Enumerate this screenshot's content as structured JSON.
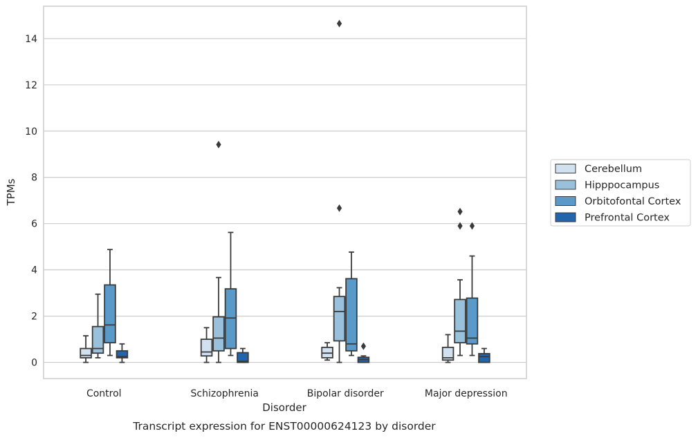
{
  "chart_data": {
    "type": "box",
    "title": "",
    "caption": "Transcript expression for ENST00000624123 by disorder",
    "xlabel": "Disorder",
    "ylabel": "TPMs",
    "ylim": [
      -0.7,
      15.4
    ],
    "yticks": [
      0,
      2,
      4,
      6,
      8,
      10,
      12,
      14
    ],
    "grid": true,
    "legend": {
      "position": "right"
    },
    "categories": [
      "Control",
      "Schizophrenia",
      "Bipolar disorder",
      "Major depression"
    ],
    "series": [
      {
        "name": "Cerebellum",
        "color": "#d1e1ef",
        "boxes": [
          {
            "whislo": 0.0,
            "q1": 0.2,
            "med": 0.3,
            "q3": 0.6,
            "whishi": 1.15,
            "fliers": []
          },
          {
            "whislo": 0.0,
            "q1": 0.28,
            "med": 0.45,
            "q3": 1.0,
            "whishi": 1.5,
            "fliers": []
          },
          {
            "whislo": 0.1,
            "q1": 0.2,
            "med": 0.4,
            "q3": 0.65,
            "whishi": 0.85,
            "fliers": []
          },
          {
            "whislo": 0.0,
            "q1": 0.1,
            "med": 0.2,
            "q3": 0.65,
            "whishi": 1.2,
            "fliers": []
          }
        ]
      },
      {
        "name": "Hipppocampus",
        "color": "#9ac1dc",
        "boxes": [
          {
            "whislo": 0.2,
            "q1": 0.4,
            "med": 0.6,
            "q3": 1.55,
            "whishi": 2.95,
            "fliers": []
          },
          {
            "whislo": 0.0,
            "q1": 0.5,
            "med": 1.05,
            "q3": 1.97,
            "whishi": 3.67,
            "fliers": [
              9.42
            ]
          },
          {
            "whislo": 0.0,
            "q1": 0.93,
            "med": 2.2,
            "q3": 2.85,
            "whishi": 3.23,
            "fliers": [
              6.67,
              14.65
            ]
          },
          {
            "whislo": 0.3,
            "q1": 0.85,
            "med": 1.35,
            "q3": 2.72,
            "whishi": 3.57,
            "fliers": [
              5.9,
              6.52
            ]
          }
        ]
      },
      {
        "name": "Orbitofontal Cortex",
        "color": "#5a9ac8",
        "boxes": [
          {
            "whislo": 0.3,
            "q1": 0.85,
            "med": 1.62,
            "q3": 3.35,
            "whishi": 4.88,
            "fliers": []
          },
          {
            "whislo": 0.3,
            "q1": 0.6,
            "med": 1.92,
            "q3": 3.18,
            "whishi": 5.62,
            "fliers": []
          },
          {
            "whislo": 0.3,
            "q1": 0.5,
            "med": 0.8,
            "q3": 3.62,
            "whishi": 4.77,
            "fliers": []
          },
          {
            "whislo": 0.3,
            "q1": 0.8,
            "med": 1.05,
            "q3": 2.78,
            "whishi": 4.6,
            "fliers": [
              5.9
            ]
          }
        ]
      },
      {
        "name": "Prefrontal Cortex",
        "color": "#2265ab",
        "boxes": [
          {
            "whislo": 0.0,
            "q1": 0.2,
            "med": 0.25,
            "q3": 0.5,
            "whishi": 0.8,
            "fliers": []
          },
          {
            "whislo": 0.0,
            "q1": 0.0,
            "med": 0.05,
            "q3": 0.42,
            "whishi": 0.6,
            "fliers": []
          },
          {
            "whislo": 0.0,
            "q1": 0.0,
            "med": 0.12,
            "q3": 0.22,
            "whishi": 0.28,
            "fliers": [
              0.7
            ]
          },
          {
            "whislo": 0.0,
            "q1": 0.0,
            "med": 0.25,
            "q3": 0.38,
            "whishi": 0.6,
            "fliers": []
          }
        ]
      }
    ]
  }
}
